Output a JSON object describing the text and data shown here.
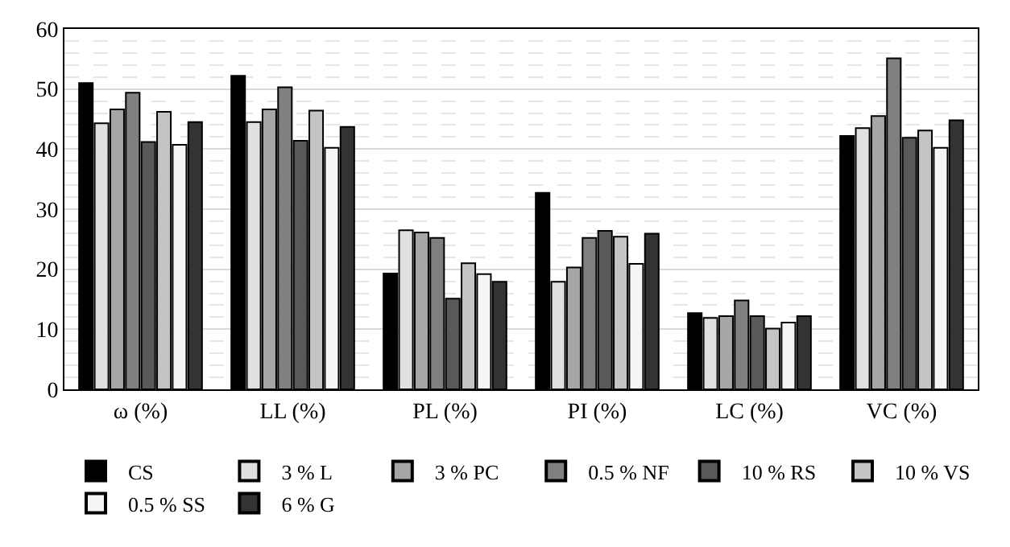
{
  "chart_data": {
    "type": "bar",
    "categories": [
      "ω (%)",
      "LL (%)",
      "PL (%)",
      "PI (%)",
      "LC (%)",
      "VC (%)"
    ],
    "series": [
      {
        "name": "CS",
        "color": "#000000",
        "values": [
          51.0,
          52.2,
          19.3,
          32.7,
          12.7,
          42.2
        ]
      },
      {
        "name": "3 % L",
        "color": "#e0e0e0",
        "values": [
          44.3,
          44.5,
          26.5,
          17.9,
          11.9,
          43.5
        ]
      },
      {
        "name": "3 % PC",
        "color": "#a6a6a6",
        "values": [
          46.6,
          46.6,
          26.1,
          20.3,
          12.2,
          45.5
        ]
      },
      {
        "name": "0.5 % NF",
        "color": "#808080",
        "values": [
          49.4,
          50.3,
          25.2,
          25.2,
          14.8,
          55.1
        ]
      },
      {
        "name": "10 % RS",
        "color": "#595959",
        "values": [
          41.2,
          41.4,
          15.1,
          26.4,
          12.2,
          41.9
        ]
      },
      {
        "name": "10 % VS",
        "color": "#c4c4c4",
        "values": [
          46.2,
          46.4,
          21.0,
          25.4,
          10.1,
          43.1
        ]
      },
      {
        "name": "0.5 % SS",
        "color": "#f5f5f5",
        "values": [
          40.7,
          40.2,
          19.2,
          20.9,
          11.1,
          40.2
        ]
      },
      {
        "name": "6 % G",
        "color": "#333333",
        "values": [
          44.5,
          43.7,
          17.9,
          25.9,
          12.2,
          44.8
        ]
      }
    ],
    "ylim": [
      0,
      60
    ],
    "yticks": [
      0,
      10,
      20,
      30,
      40,
      50,
      60
    ],
    "grid": "y",
    "legend": "bottom"
  }
}
